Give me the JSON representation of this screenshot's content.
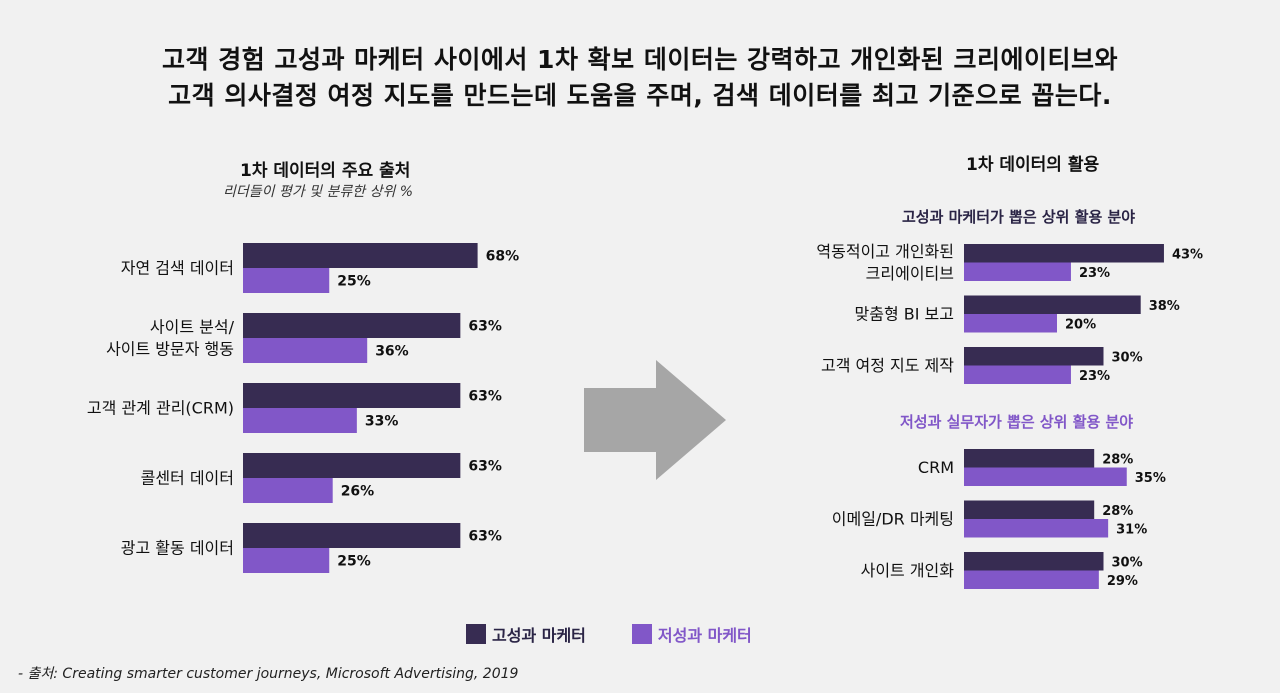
{
  "headline": {
    "line1": "고객 경험 고성과 마케터 사이에서 1차 확보 데이터는 강력하고 개인화된 크리에이티브와",
    "line2": "고객 의사결정 여정 지도를 만드는데 도움을 주며,  검색 데이터를 최고 기준으로 꼽는다."
  },
  "colors": {
    "high": "#372c52",
    "low": "#8157c8",
    "arrow": "#a6a6a6"
  },
  "legend": {
    "high_label": "고성과 마케터",
    "low_label": "저성과 마케터"
  },
  "source": "- 출처: Creating smarter customer journeys, Microsoft  Advertising, 2019",
  "chart_data": [
    {
      "type": "bar",
      "orientation": "horizontal",
      "title": "1차 데이터의 주요 출처",
      "subtitle": "리더들이 평가 및 분류한 상위 %",
      "categories": [
        [
          "자연 검색 데이터"
        ],
        [
          "사이트 분석/",
          "사이트 방문자 행동"
        ],
        [
          "고객 관계 관리(CRM)"
        ],
        [
          "콜센터 데이터"
        ],
        [
          "광고 활동 데이터"
        ]
      ],
      "series": [
        {
          "name": "고성과 마케터",
          "values": [
            68,
            63,
            63,
            63,
            63
          ]
        },
        {
          "name": "저성과 마케터",
          "values": [
            25,
            36,
            33,
            26,
            25
          ]
        }
      ],
      "value_suffix": "%"
    },
    {
      "type": "bar",
      "orientation": "horizontal",
      "title": "1차 데이터의 활용",
      "groups": [
        {
          "title": "고성과 마케터가 뽑은 상위 활용 분야",
          "categories": [
            [
              "역동적이고 개인화된",
              "크리에이티브"
            ],
            [
              "맞춤형 BI 보고"
            ],
            [
              "고객 여정 지도 제작"
            ]
          ],
          "series": [
            {
              "name": "고성과 마케터",
              "values": [
                43,
                38,
                30
              ]
            },
            {
              "name": "저성과 마케터",
              "values": [
                23,
                20,
                23
              ]
            }
          ]
        },
        {
          "title": "저성과 실무자가 뽑은 상위 활용 분야",
          "categories": [
            [
              "CRM"
            ],
            [
              "이메일/DR 마케팅"
            ],
            [
              "사이트 개인화"
            ]
          ],
          "series": [
            {
              "name": "고성과 마케터",
              "values": [
                28,
                28,
                30
              ]
            },
            {
              "name": "저성과 마케터",
              "values": [
                35,
                31,
                29
              ]
            }
          ]
        }
      ],
      "value_suffix": "%"
    }
  ]
}
